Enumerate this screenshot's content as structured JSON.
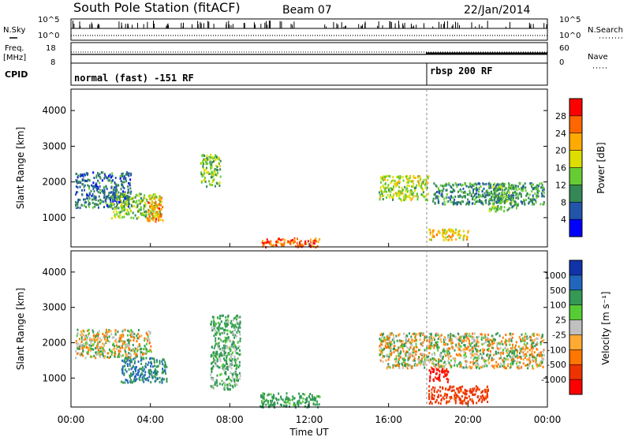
{
  "header": {
    "station": "South Pole Station (fitACF)",
    "beam": "Beam 07",
    "date": "22/Jan/2014"
  },
  "left_labels": {
    "nsky": "N.Sky",
    "freq": "Freq.",
    "freq_unit": "[MHz]",
    "cpid": "CPID"
  },
  "right_labels": {
    "nsearch": "N.Search",
    "nave": "Nave"
  },
  "noise_axis": {
    "left_ticks": [
      "10^5",
      "10^0"
    ],
    "right_ticks": [
      "10^5",
      "10^0"
    ]
  },
  "freq_axis": {
    "left_ticks": [
      "18",
      "8"
    ],
    "right_ticks": [
      "60",
      "0"
    ]
  },
  "cpid_segments": [
    {
      "label": "normal (fast) -151 RF",
      "start_hour": 0
    },
    {
      "label": "rbsp 200 RF",
      "start_hour": 18
    }
  ],
  "x_ticks": [
    "00:00",
    "04:00",
    "08:00",
    "12:00",
    "16:00",
    "20:00",
    "00:00"
  ],
  "x_label": "Time UT",
  "y_label": "Slant Range [km]",
  "y_ticks": [
    "4000",
    "3000",
    "2000",
    "1000"
  ],
  "power_colorbar": {
    "label": "Power [dB]",
    "ticks": [
      "28",
      "24",
      "20",
      "16",
      "12",
      "8",
      "4"
    ],
    "colors": [
      "#ff0000",
      "#ff6600",
      "#ffaa00",
      "#dddd00",
      "#66cc33",
      "#338855",
      "#2255aa",
      "#0000ff"
    ]
  },
  "velocity_colorbar": {
    "label": "Velocity [m s⁻¹]",
    "ticks": [
      "1000",
      "500",
      "100",
      "25",
      "-25",
      "-100",
      "-500",
      "-1000"
    ],
    "colors": [
      "#1133aa",
      "#2266bb",
      "#339955",
      "#55cc33",
      "#c0c0c0",
      "#ffaa33",
      "#ff7700",
      "#ee3300",
      "#ff0000"
    ]
  },
  "chart_data": [
    {
      "type": "heatmap",
      "title": "",
      "xlabel": "Time UT",
      "ylabel": "Slant Range [km]",
      "xlim": [
        0,
        24
      ],
      "ylim": [
        180,
        4600
      ],
      "colorbar_label": "Power [dB]",
      "colorbar_range": [
        0,
        30
      ],
      "regions": [
        {
          "t0": 0.2,
          "t1": 3.0,
          "r0": 1300,
          "r1": 2300,
          "level": 8
        },
        {
          "t0": 2.0,
          "t1": 4.5,
          "r0": 1000,
          "r1": 1700,
          "level": 14
        },
        {
          "t0": 3.8,
          "t1": 4.6,
          "r0": 900,
          "r1": 1600,
          "level": 24
        },
        {
          "t0": 6.5,
          "t1": 7.5,
          "r0": 1900,
          "r1": 2800,
          "level": 14
        },
        {
          "t0": 9.5,
          "t1": 12.5,
          "r0": 200,
          "r1": 450,
          "level": 26
        },
        {
          "t0": 15.5,
          "t1": 18.0,
          "r0": 1500,
          "r1": 2200,
          "level": 16
        },
        {
          "t0": 18.2,
          "t1": 23.8,
          "r0": 1400,
          "r1": 2000,
          "level": 10
        },
        {
          "t0": 18.0,
          "t1": 20.0,
          "r0": 400,
          "r1": 700,
          "level": 20
        },
        {
          "t0": 21.0,
          "t1": 22.5,
          "r0": 1200,
          "r1": 2000,
          "level": 12
        }
      ]
    },
    {
      "type": "heatmap",
      "title": "",
      "xlabel": "Time UT",
      "ylabel": "Slant Range [km]",
      "xlim": [
        0,
        24
      ],
      "ylim": [
        180,
        4600
      ],
      "colorbar_label": "Velocity [m s⁻¹]",
      "colorbar_range": [
        -1000,
        1000
      ],
      "regions": [
        {
          "t0": 0.2,
          "t1": 4.0,
          "r0": 1600,
          "r1": 2400,
          "level": 0
        },
        {
          "t0": 2.5,
          "t1": 4.8,
          "r0": 900,
          "r1": 1600,
          "level": 300
        },
        {
          "t0": 7.0,
          "t1": 8.5,
          "r0": 700,
          "r1": 2800,
          "level": 100
        },
        {
          "t0": 9.5,
          "t1": 12.5,
          "r0": 200,
          "r1": 600,
          "level": 150
        },
        {
          "t0": 15.5,
          "t1": 23.8,
          "r0": 1300,
          "r1": 2300,
          "level": 0
        },
        {
          "t0": 18.0,
          "t1": 21.0,
          "r0": 300,
          "r1": 800,
          "level": -400
        },
        {
          "t0": 18.0,
          "t1": 19.0,
          "r0": 900,
          "r1": 1300,
          "level": -800
        }
      ]
    }
  ]
}
